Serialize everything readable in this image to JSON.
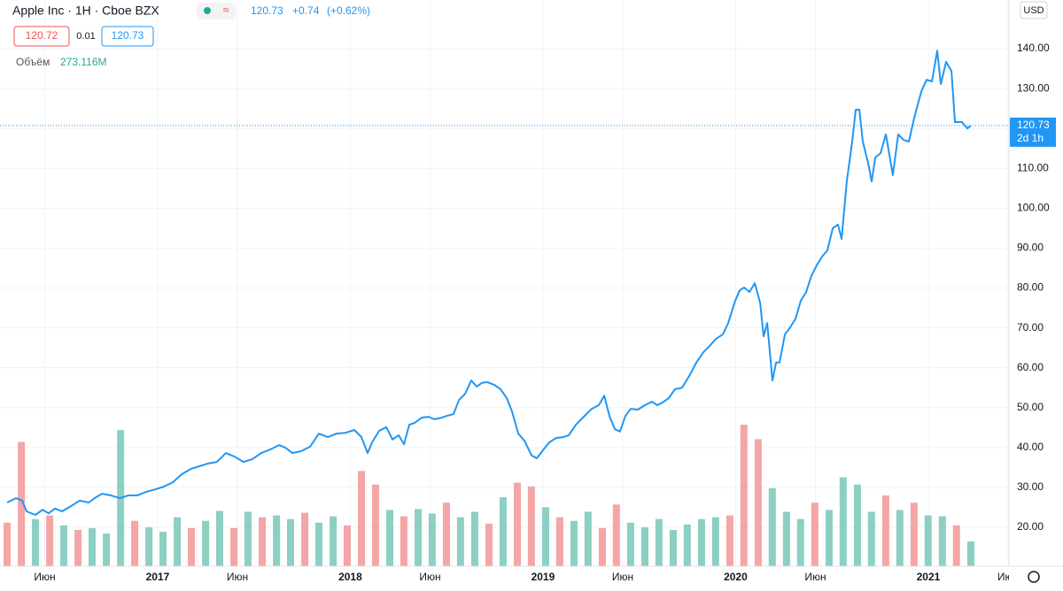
{
  "chart_data": {
    "type": "line",
    "title": "Apple Inc · 1H · Cboe BZX",
    "currency": "USD",
    "legend": {
      "price": "120.73",
      "change": "+0.74",
      "change_pct": "(+0.62%)",
      "bid": "120.72",
      "spread": "0.01",
      "ask": "120.73"
    },
    "series": [
      {
        "color": "#2196f3",
        "x": [
          2016.219,
          2016.265,
          2016.297,
          2016.32,
          2016.366,
          2016.403,
          2016.435,
          2016.467,
          2016.504,
          2016.55,
          2016.596,
          2016.642,
          2016.679,
          2016.711,
          2016.757,
          2016.803,
          2016.849,
          2016.895,
          2016.941,
          2016.987,
          2017.033,
          2017.079,
          2017.125,
          2017.171,
          2017.216,
          2017.262,
          2017.308,
          2017.354,
          2017.4,
          2017.446,
          2017.492,
          2017.538,
          2017.584,
          2017.63,
          2017.662,
          2017.699,
          2017.745,
          2017.791,
          2017.837,
          2017.883,
          2017.929,
          2017.975,
          2018.021,
          2018.058,
          2018.09,
          2018.113,
          2018.15,
          2018.187,
          2018.219,
          2018.251,
          2018.279,
          2018.306,
          2018.334,
          2018.371,
          2018.407,
          2018.435,
          2018.462,
          2018.499,
          2018.536,
          2018.564,
          2018.596,
          2018.628,
          2018.656,
          2018.683,
          2018.711,
          2018.748,
          2018.78,
          2018.812,
          2018.839,
          2018.872,
          2018.904,
          2018.941,
          2018.968,
          2018.996,
          2019.033,
          2019.069,
          2019.106,
          2019.134,
          2019.171,
          2019.216,
          2019.253,
          2019.29,
          2019.318,
          2019.345,
          2019.373,
          2019.4,
          2019.428,
          2019.456,
          2019.492,
          2019.529,
          2019.566,
          2019.593,
          2019.621,
          2019.653,
          2019.685,
          2019.722,
          2019.759,
          2019.796,
          2019.833,
          2019.86,
          2019.897,
          2019.934,
          2019.961,
          2019.998,
          2020.021,
          2020.044,
          2020.072,
          2020.099,
          2020.127,
          2020.145,
          2020.164,
          2020.191,
          2020.21,
          2020.228,
          2020.256,
          2020.283,
          2020.311,
          2020.338,
          2020.366,
          2020.393,
          2020.421,
          2020.449,
          2020.476,
          2020.504,
          2020.531,
          2020.55,
          2020.577,
          2020.605,
          2020.623,
          2020.642,
          2020.66,
          2020.688,
          2020.706,
          2020.725,
          2020.752,
          2020.78,
          2020.798,
          2020.816,
          2020.844,
          2020.872,
          2020.899,
          2020.927,
          2020.964,
          2020.991,
          2021.019,
          2021.046,
          2021.065,
          2021.092,
          2021.12,
          2021.138,
          2021.175,
          2021.203,
          2021.221
        ],
        "values": [
          26.2,
          27.3,
          26.7,
          24.0,
          23.1,
          24.4,
          23.5,
          24.7,
          24.0,
          25.3,
          26.7,
          26.2,
          27.5,
          28.4,
          28.0,
          27.3,
          28.0,
          28.0,
          28.9,
          29.5,
          30.2,
          31.3,
          33.3,
          34.6,
          35.3,
          36.0,
          36.4,
          38.6,
          37.7,
          36.4,
          37.1,
          38.6,
          39.5,
          40.6,
          40.0,
          38.6,
          39.1,
          40.2,
          43.5,
          42.6,
          43.5,
          43.7,
          44.4,
          42.6,
          38.6,
          41.3,
          44.2,
          45.1,
          42.0,
          43.1,
          40.8,
          45.7,
          46.2,
          47.5,
          47.7,
          47.1,
          47.3,
          47.9,
          48.4,
          51.9,
          53.5,
          56.8,
          55.3,
          56.2,
          56.4,
          55.7,
          54.6,
          52.4,
          49.1,
          43.5,
          41.7,
          38.0,
          37.3,
          39.1,
          41.3,
          42.4,
          42.6,
          43.1,
          45.7,
          47.9,
          49.7,
          50.6,
          53.0,
          47.9,
          44.6,
          44.0,
          47.9,
          49.7,
          49.5,
          50.6,
          51.5,
          50.6,
          51.3,
          52.4,
          54.6,
          55.0,
          57.9,
          61.3,
          63.9,
          65.2,
          67.2,
          68.4,
          71.2,
          76.8,
          79.4,
          80.1,
          79.0,
          81.2,
          76.3,
          67.9,
          71.2,
          56.8,
          61.3,
          61.3,
          68.4,
          70.1,
          72.3,
          76.8,
          79.0,
          83.0,
          85.7,
          87.9,
          89.4,
          95.0,
          95.9,
          92.3,
          106.7,
          116.7,
          124.7,
          124.7,
          116.7,
          111.2,
          106.7,
          112.7,
          113.8,
          118.5,
          113.4,
          108.3,
          118.5,
          117.1,
          116.7,
          122.7,
          129.3,
          132.2,
          131.8,
          139.5,
          131.1,
          136.7,
          134.4,
          121.6,
          121.6,
          120.0,
          120.73
        ]
      }
    ],
    "volume": {
      "name": "Объём",
      "label": "273.116M",
      "vlim": [
        0,
        1950
      ],
      "x": [
        2016.219,
        2016.293,
        2016.366,
        2016.44,
        2016.513,
        2016.587,
        2016.66,
        2016.734,
        2016.808,
        2016.881,
        2016.955,
        2017.028,
        2017.102,
        2017.175,
        2017.249,
        2017.322,
        2017.396,
        2017.469,
        2017.543,
        2017.617,
        2017.69,
        2017.764,
        2017.837,
        2017.911,
        2017.984,
        2018.058,
        2018.131,
        2018.205,
        2018.278,
        2018.352,
        2018.425,
        2018.499,
        2018.572,
        2018.646,
        2018.72,
        2018.793,
        2018.867,
        2018.94,
        2019.014,
        2019.087,
        2019.161,
        2019.234,
        2019.308,
        2019.381,
        2019.455,
        2019.529,
        2019.602,
        2019.676,
        2019.749,
        2019.823,
        2019.896,
        2019.97,
        2020.043,
        2020.117,
        2020.19,
        2020.264,
        2020.337,
        2020.411,
        2020.485,
        2020.558,
        2020.632,
        2020.705,
        2020.779,
        2020.852,
        2020.926,
        2020.999,
        2021.073,
        2021.146,
        2021.221
      ],
      "values": [
        480,
        1370,
        520,
        560,
        450,
        400,
        420,
        360,
        1500,
        500,
        430,
        380,
        540,
        420,
        500,
        610,
        420,
        600,
        540,
        560,
        520,
        590,
        480,
        550,
        450,
        1050,
        900,
        620,
        550,
        630,
        580,
        700,
        540,
        600,
        470,
        760,
        920,
        880,
        650,
        540,
        500,
        600,
        420,
        680,
        480,
        430,
        520,
        400,
        460,
        520,
        540,
        560,
        1560,
        1400,
        860,
        600,
        520,
        700,
        620,
        980,
        900,
        600,
        780,
        620,
        700,
        560,
        550,
        450,
        273.116
      ],
      "colors": [
        "#f4a5a5",
        "#f4a5a5",
        "#8ccfc3",
        "#f4a5a5",
        "#8ccfc3",
        "#f4a5a5",
        "#8ccfc3",
        "#8ccfc3",
        "#8ccfc3",
        "#f4a5a5",
        "#8ccfc3",
        "#8ccfc3",
        "#8ccfc3",
        "#f4a5a5",
        "#8ccfc3",
        "#8ccfc3",
        "#f4a5a5",
        "#8ccfc3",
        "#f4a5a5",
        "#8ccfc3",
        "#8ccfc3",
        "#f4a5a5",
        "#8ccfc3",
        "#8ccfc3",
        "#f4a5a5",
        "#f4a5a5",
        "#f4a5a5",
        "#8ccfc3",
        "#f4a5a5",
        "#8ccfc3",
        "#8ccfc3",
        "#f4a5a5",
        "#8ccfc3",
        "#8ccfc3",
        "#f4a5a5",
        "#8ccfc3",
        "#f4a5a5",
        "#f4a5a5",
        "#8ccfc3",
        "#f4a5a5",
        "#8ccfc3",
        "#8ccfc3",
        "#f4a5a5",
        "#f4a5a5",
        "#8ccfc3",
        "#8ccfc3",
        "#8ccfc3",
        "#8ccfc3",
        "#8ccfc3",
        "#8ccfc3",
        "#8ccfc3",
        "#f4a5a5",
        "#f4a5a5",
        "#f4a5a5",
        "#8ccfc3",
        "#8ccfc3",
        "#8ccfc3",
        "#f4a5a5",
        "#8ccfc3",
        "#8ccfc3",
        "#8ccfc3",
        "#8ccfc3",
        "#f4a5a5",
        "#8ccfc3",
        "#f4a5a5",
        "#8ccfc3",
        "#8ccfc3",
        "#f4a5a5",
        "#8ccfc3"
      ]
    },
    "last_price": 120.73,
    "countdown": "2d 1h",
    "xlim": [
      2016.182,
      2021.414
    ],
    "xticks": [
      {
        "value": 2016.414,
        "label": "Июн"
      },
      2017,
      {
        "value": 2017.414,
        "label": "Июн"
      },
      2018,
      {
        "value": 2018.414,
        "label": "Июн"
      },
      2019,
      {
        "value": 2019.414,
        "label": "Июн"
      },
      2020,
      {
        "value": 2020.414,
        "label": "Июн"
      },
      2021,
      {
        "value": 2021.414,
        "label": "Июн"
      }
    ],
    "ylim": [
      10.24,
      152.2
    ],
    "yticks": [
      {
        "value": 20,
        "label": "20.00"
      },
      {
        "value": 30,
        "label": "30.00"
      },
      {
        "value": 40,
        "label": "40.00"
      },
      {
        "value": 50,
        "label": "50.00"
      },
      {
        "value": 60,
        "label": "60.00"
      },
      {
        "value": 70,
        "label": "70.00"
      },
      {
        "value": 80,
        "label": "80.00"
      },
      {
        "value": 90,
        "label": "90.00"
      },
      {
        "value": 100,
        "label": "100.00"
      },
      {
        "value": 110,
        "label": "110.00"
      },
      {
        "value": 120,
        "label": "120.00"
      },
      {
        "value": 130,
        "label": "130.00"
      },
      {
        "value": 140,
        "label": "140.00"
      }
    ],
    "grid": true
  }
}
